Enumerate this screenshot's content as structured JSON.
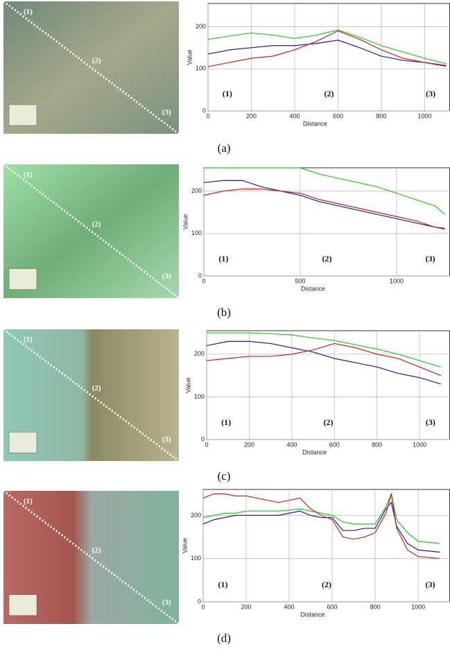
{
  "panels": [
    {
      "caption": "(a)",
      "photo_labels": [
        "(1)",
        "(2)",
        "(3)"
      ]
    },
    {
      "caption": "(b)",
      "photo_labels": [
        "(1)",
        "(2)",
        "(3)"
      ]
    },
    {
      "caption": "(c)",
      "photo_labels": [
        "(1)",
        "(2)",
        "(3)"
      ]
    },
    {
      "caption": "(d)",
      "photo_labels": [
        "(1)",
        "(2)",
        "(3)"
      ]
    }
  ],
  "chart_data": [
    {
      "type": "line",
      "x_label": "Distance",
      "y_label": "Value",
      "annotations": [
        "(1)",
        "(2)",
        "(3)"
      ],
      "x": [
        0,
        100,
        200,
        300,
        400,
        500,
        600,
        700,
        800,
        900,
        1000,
        1100
      ],
      "series": [
        {
          "color": "#22c822",
          "values": [
            170,
            178,
            185,
            180,
            172,
            180,
            192,
            175,
            155,
            140,
            125,
            112
          ]
        },
        {
          "color": "#1c1ca0",
          "values": [
            135,
            145,
            150,
            155,
            155,
            160,
            168,
            150,
            130,
            120,
            115,
            106
          ]
        },
        {
          "color": "#c82020",
          "values": [
            105,
            115,
            125,
            130,
            145,
            165,
            190,
            170,
            145,
            125,
            115,
            108
          ]
        }
      ],
      "xlim": [
        0,
        1117
      ],
      "ylim": [
        0,
        255
      ],
      "xticks": [
        0,
        200,
        400,
        600,
        800,
        1000
      ],
      "yticks": [
        0,
        100,
        200
      ],
      "grid": true
    },
    {
      "type": "line",
      "x_label": "Distance",
      "y_label": "Value",
      "annotations": [
        "(1)",
        "(2)",
        "(3)"
      ],
      "x": [
        0,
        100,
        200,
        300,
        400,
        500,
        600,
        700,
        800,
        900,
        1000,
        1100,
        1200,
        1250
      ],
      "series": [
        {
          "color": "#22c822",
          "values": [
            255,
            255,
            255,
            255,
            255,
            255,
            240,
            230,
            220,
            210,
            195,
            180,
            165,
            145
          ]
        },
        {
          "color": "#1c1ca0",
          "values": [
            220,
            225,
            225,
            210,
            200,
            190,
            175,
            165,
            155,
            145,
            135,
            125,
            115,
            112
          ]
        },
        {
          "color": "#c82020",
          "values": [
            190,
            200,
            205,
            205,
            200,
            195,
            180,
            170,
            160,
            150,
            140,
            130,
            115,
            110
          ]
        }
      ],
      "xlim": [
        0,
        1277
      ],
      "ylim": [
        0,
        255
      ],
      "xticks": [
        0,
        500,
        1000
      ],
      "yticks": [
        0,
        100,
        200
      ],
      "grid": true
    },
    {
      "type": "line",
      "x_label": "Distance",
      "y_label": "Value",
      "annotations": [
        "(1)",
        "(2)",
        "(3)"
      ],
      "x": [
        0,
        100,
        200,
        300,
        400,
        500,
        600,
        700,
        800,
        900,
        1000,
        1100
      ],
      "series": [
        {
          "color": "#22c822",
          "values": [
            250,
            250,
            250,
            248,
            245,
            238,
            232,
            222,
            212,
            200,
            185,
            170
          ]
        },
        {
          "color": "#1c1ca0",
          "values": [
            220,
            230,
            230,
            225,
            215,
            205,
            190,
            180,
            170,
            155,
            145,
            130
          ]
        },
        {
          "color": "#c82020",
          "values": [
            185,
            190,
            195,
            195,
            200,
            210,
            225,
            215,
            200,
            190,
            170,
            150
          ]
        }
      ],
      "xlim": [
        0,
        1143
      ],
      "ylim": [
        0,
        255
      ],
      "xticks": [
        0,
        200,
        400,
        600,
        800,
        1000
      ],
      "yticks": [
        0,
        100,
        200
      ],
      "grid": true
    },
    {
      "type": "line",
      "x_label": "Distance",
      "y_label": "Value",
      "annotations": [
        "(1)",
        "(2)",
        "(3)"
      ],
      "x": [
        0,
        50,
        100,
        150,
        200,
        250,
        300,
        350,
        400,
        450,
        500,
        550,
        600,
        650,
        700,
        750,
        800,
        850,
        875,
        900,
        950,
        1000,
        1100
      ],
      "series": [
        {
          "color": "#22c822",
          "values": [
            195,
            200,
            205,
            205,
            210,
            210,
            210,
            210,
            212,
            215,
            210,
            205,
            200,
            185,
            180,
            180,
            180,
            220,
            250,
            190,
            160,
            140,
            135
          ]
        },
        {
          "color": "#1c1ca0",
          "values": [
            180,
            190,
            195,
            200,
            200,
            200,
            200,
            200,
            205,
            210,
            200,
            195,
            195,
            165,
            165,
            170,
            170,
            215,
            230,
            175,
            135,
            120,
            115
          ]
        },
        {
          "color": "#c82020",
          "values": [
            240,
            250,
            250,
            245,
            245,
            240,
            235,
            230,
            235,
            240,
            215,
            200,
            190,
            150,
            145,
            150,
            160,
            205,
            250,
            170,
            120,
            105,
            100
          ]
        }
      ],
      "xlim": [
        0,
        1148
      ],
      "ylim": [
        0,
        260
      ],
      "xticks": [
        0,
        200,
        400,
        600,
        800,
        1000
      ],
      "yticks": [
        0,
        100,
        200
      ],
      "grid": true
    }
  ]
}
